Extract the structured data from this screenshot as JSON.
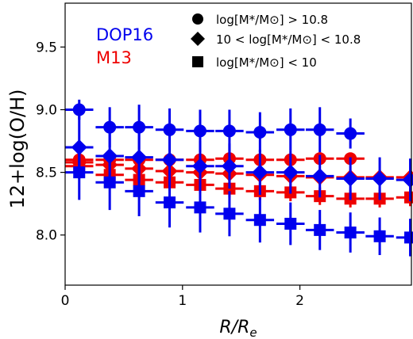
{
  "chart_data": {
    "type": "scatter",
    "xlabel": "R/R",
    "xlabel_sub": "e",
    "ylabel": "12+log(O/H)",
    "xlim": [
      0,
      2.95
    ],
    "ylim": [
      7.6,
      9.85
    ],
    "x_ticks": [
      0,
      1,
      2
    ],
    "x_tick_labels": [
      "0",
      "1",
      "2"
    ],
    "y_ticks": [
      8.0,
      8.5,
      9.0,
      9.5
    ],
    "y_tick_labels": [
      "8.0",
      "8.5",
      "9.0",
      "9.5"
    ],
    "grid": false,
    "method_labels": [
      {
        "text": "DOP16",
        "color": "#0000ee"
      },
      {
        "text": "M13",
        "color": "#ee0000"
      }
    ],
    "marker_legend": [
      {
        "marker": "circle",
        "label": "log[M*/M⊙] > 10.8"
      },
      {
        "marker": "diamond",
        "label": "10 < log[M*/M⊙] < 10.8"
      },
      {
        "marker": "square",
        "label": "log[M*/M⊙] < 10"
      }
    ],
    "legend_position": "top-right",
    "series": [
      {
        "method": "DOP16",
        "marker": "circle",
        "color": "#0000ee",
        "x": [
          0.12,
          0.38,
          0.63,
          0.89,
          1.15,
          1.4,
          1.66,
          1.92,
          2.17,
          2.43
        ],
        "y": [
          9.0,
          8.86,
          8.86,
          8.84,
          8.83,
          8.83,
          8.82,
          8.84,
          8.84,
          8.81
        ],
        "yerr": [
          0.08,
          0.16,
          0.18,
          0.17,
          0.17,
          0.17,
          0.16,
          0.17,
          0.18,
          0.12
        ],
        "xerr": 0.12
      },
      {
        "method": "DOP16",
        "marker": "diamond",
        "color": "#0000ee",
        "x": [
          0.12,
          0.38,
          0.63,
          0.89,
          1.15,
          1.4,
          1.66,
          1.92,
          2.17,
          2.43,
          2.68,
          2.94
        ],
        "y": [
          8.7,
          8.63,
          8.62,
          8.6,
          8.55,
          8.55,
          8.5,
          8.5,
          8.47,
          8.45,
          8.45,
          8.44
        ],
        "yerr": [
          0.25,
          0.22,
          0.2,
          0.2,
          0.2,
          0.18,
          0.18,
          0.17,
          0.17,
          0.17,
          0.17,
          0.17
        ],
        "xerr": 0.12
      },
      {
        "method": "DOP16",
        "marker": "square",
        "color": "#0000ee",
        "x": [
          0.12,
          0.38,
          0.63,
          0.89,
          1.15,
          1.4,
          1.66,
          1.92,
          2.17,
          2.43,
          2.68,
          2.94
        ],
        "y": [
          8.5,
          8.42,
          8.35,
          8.26,
          8.22,
          8.17,
          8.12,
          8.09,
          8.04,
          8.02,
          7.99,
          7.98
        ],
        "yerr": [
          0.22,
          0.22,
          0.2,
          0.2,
          0.2,
          0.18,
          0.18,
          0.17,
          0.16,
          0.16,
          0.15,
          0.15
        ],
        "xerr": 0.12
      },
      {
        "method": "M13",
        "marker": "circle",
        "color": "#ee0000",
        "x": [
          0.12,
          0.38,
          0.63,
          0.89,
          1.15,
          1.4,
          1.66,
          1.92,
          2.17,
          2.43
        ],
        "y": [
          8.6,
          8.6,
          8.6,
          8.6,
          8.6,
          8.61,
          8.6,
          8.6,
          8.61,
          8.61
        ],
        "yerr": [
          0.04,
          0.05,
          0.05,
          0.05,
          0.05,
          0.05,
          0.05,
          0.05,
          0.05,
          0.04
        ],
        "xerr": 0.12
      },
      {
        "method": "M13",
        "marker": "diamond",
        "color": "#ee0000",
        "x": [
          0.12,
          0.38,
          0.63,
          0.89,
          1.15,
          1.4,
          1.66,
          1.92,
          2.17,
          2.43,
          2.68,
          2.94
        ],
        "y": [
          8.58,
          8.56,
          8.53,
          8.51,
          8.5,
          8.49,
          8.48,
          8.47,
          8.46,
          8.46,
          8.46,
          8.46
        ],
        "yerr": [
          0.06,
          0.07,
          0.07,
          0.06,
          0.06,
          0.06,
          0.06,
          0.06,
          0.06,
          0.06,
          0.06,
          0.06
        ],
        "xerr": 0.12
      },
      {
        "method": "M13",
        "marker": "square",
        "color": "#ee0000",
        "x": [
          0.12,
          0.38,
          0.63,
          0.89,
          1.15,
          1.4,
          1.66,
          1.92,
          2.17,
          2.43,
          2.68,
          2.94
        ],
        "y": [
          8.55,
          8.48,
          8.44,
          8.42,
          8.4,
          8.37,
          8.35,
          8.34,
          8.31,
          8.29,
          8.29,
          8.3
        ],
        "yerr": [
          0.07,
          0.07,
          0.07,
          0.07,
          0.07,
          0.07,
          0.07,
          0.07,
          0.07,
          0.07,
          0.07,
          0.07
        ],
        "xerr": 0.12
      }
    ]
  }
}
